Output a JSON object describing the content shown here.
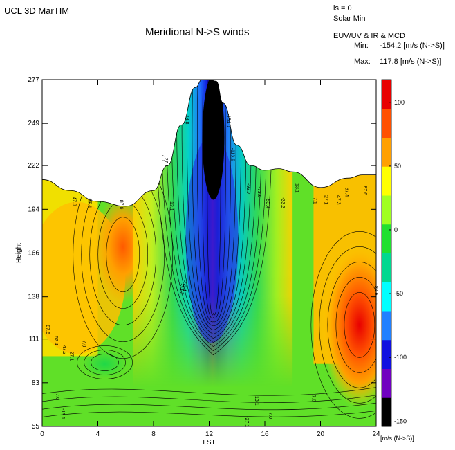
{
  "header": {
    "app_title": "UCL 3D MarTIM",
    "ls": "ls = 0",
    "solar": "Solar Min",
    "model": "EUV/UV & IR & MCD",
    "min_label": "Min:",
    "min_value": "-154.2 [m/s (N->S)]",
    "max_label": "Max:",
    "max_value": "117.8 [m/s (N->S)]"
  },
  "chart_data": {
    "type": "heatmap",
    "title": "Meridional N->S winds",
    "xlabel": "LST",
    "ylabel": "Height",
    "xlim": [
      0,
      24
    ],
    "ylim": [
      55,
      277
    ],
    "x_ticks": [
      0,
      4,
      8,
      12,
      16,
      20,
      24
    ],
    "y_ticks": [
      55,
      83,
      111,
      138,
      166,
      194,
      222,
      249,
      277
    ],
    "grid": false,
    "colorbar": {
      "range": [
        -154.2,
        117.8
      ],
      "ticks": [
        100,
        50,
        0,
        -50,
        -100,
        -150
      ],
      "unit_label": "[m/s (N->S)]",
      "colors": [
        "#000000",
        "#7000c0",
        "#1010e0",
        "#2080ff",
        "#00ffff",
        "#00d890",
        "#20e030",
        "#a0ff20",
        "#ffff00",
        "#ffa000",
        "#ff5000",
        "#e80000"
      ]
    },
    "top_boundary": {
      "lst": [
        0,
        2,
        4,
        6,
        8,
        9,
        10,
        11,
        11.5,
        12,
        12.5,
        13,
        14,
        15,
        16,
        17,
        18,
        20,
        22,
        23,
        24
      ],
      "height": [
        213,
        206,
        199,
        196,
        206,
        222,
        248,
        272,
        277,
        277,
        276,
        262,
        235,
        222,
        219,
        220,
        218,
        208,
        214,
        216,
        216
      ]
    },
    "contour_labels": [
      {
        "text": "47.3",
        "x": 2.2,
        "y": 199
      },
      {
        "text": "67.4",
        "x": 3.3,
        "y": 198
      },
      {
        "text": "87.6",
        "x": 5.6,
        "y": 197
      },
      {
        "text": "7.0",
        "x": 8.6,
        "y": 227
      },
      {
        "text": "27.1",
        "x": 8.8,
        "y": 224
      },
      {
        "text": "13.1",
        "x": 9.2,
        "y": 196
      },
      {
        "text": "-73.8",
        "x": 10.3,
        "y": 252
      },
      {
        "text": "-154.0",
        "x": 13.3,
        "y": 251
      },
      {
        "text": "-113.9",
        "x": 13.6,
        "y": 229
      },
      {
        "text": "-93.7",
        "x": 14.7,
        "y": 207
      },
      {
        "text": "-73.6",
        "x": 15.5,
        "y": 205
      },
      {
        "text": "-53.4",
        "x": 16.1,
        "y": 198
      },
      {
        "text": "-33.3",
        "x": 17.2,
        "y": 198
      },
      {
        "text": "-13.1",
        "x": 18.2,
        "y": 208
      },
      {
        "text": "-53.4",
        "x": 10.1,
        "y": 145
      },
      {
        "text": "-33.3",
        "x": 9.9,
        "y": 143
      },
      {
        "text": "-7.1",
        "x": 19.5,
        "y": 200
      },
      {
        "text": "27.1",
        "x": 20.3,
        "y": 200
      },
      {
        "text": "47.3",
        "x": 21.2,
        "y": 200
      },
      {
        "text": "67.4",
        "x": 21.8,
        "y": 205
      },
      {
        "text": "87.6",
        "x": 23.1,
        "y": 206
      },
      {
        "text": "87.6",
        "x": 0.3,
        "y": 117
      },
      {
        "text": "67.4",
        "x": 0.9,
        "y": 110
      },
      {
        "text": "47.3",
        "x": 1.5,
        "y": 104
      },
      {
        "text": "27.1",
        "x": 2.0,
        "y": 100
      },
      {
        "text": "7.0",
        "x": 2.9,
        "y": 108
      },
      {
        "text": "7.0",
        "x": 1.0,
        "y": 74
      },
      {
        "text": "-13.1",
        "x": 1.4,
        "y": 63
      },
      {
        "text": "-13.1",
        "x": 15.3,
        "y": 72
      },
      {
        "text": "7.0",
        "x": 19.4,
        "y": 73
      },
      {
        "text": "7.0",
        "x": 16.3,
        "y": 62
      },
      {
        "text": "-27.1",
        "x": 14.6,
        "y": 58
      },
      {
        "text": "87.6",
        "x": 23.9,
        "y": 142
      }
    ]
  }
}
